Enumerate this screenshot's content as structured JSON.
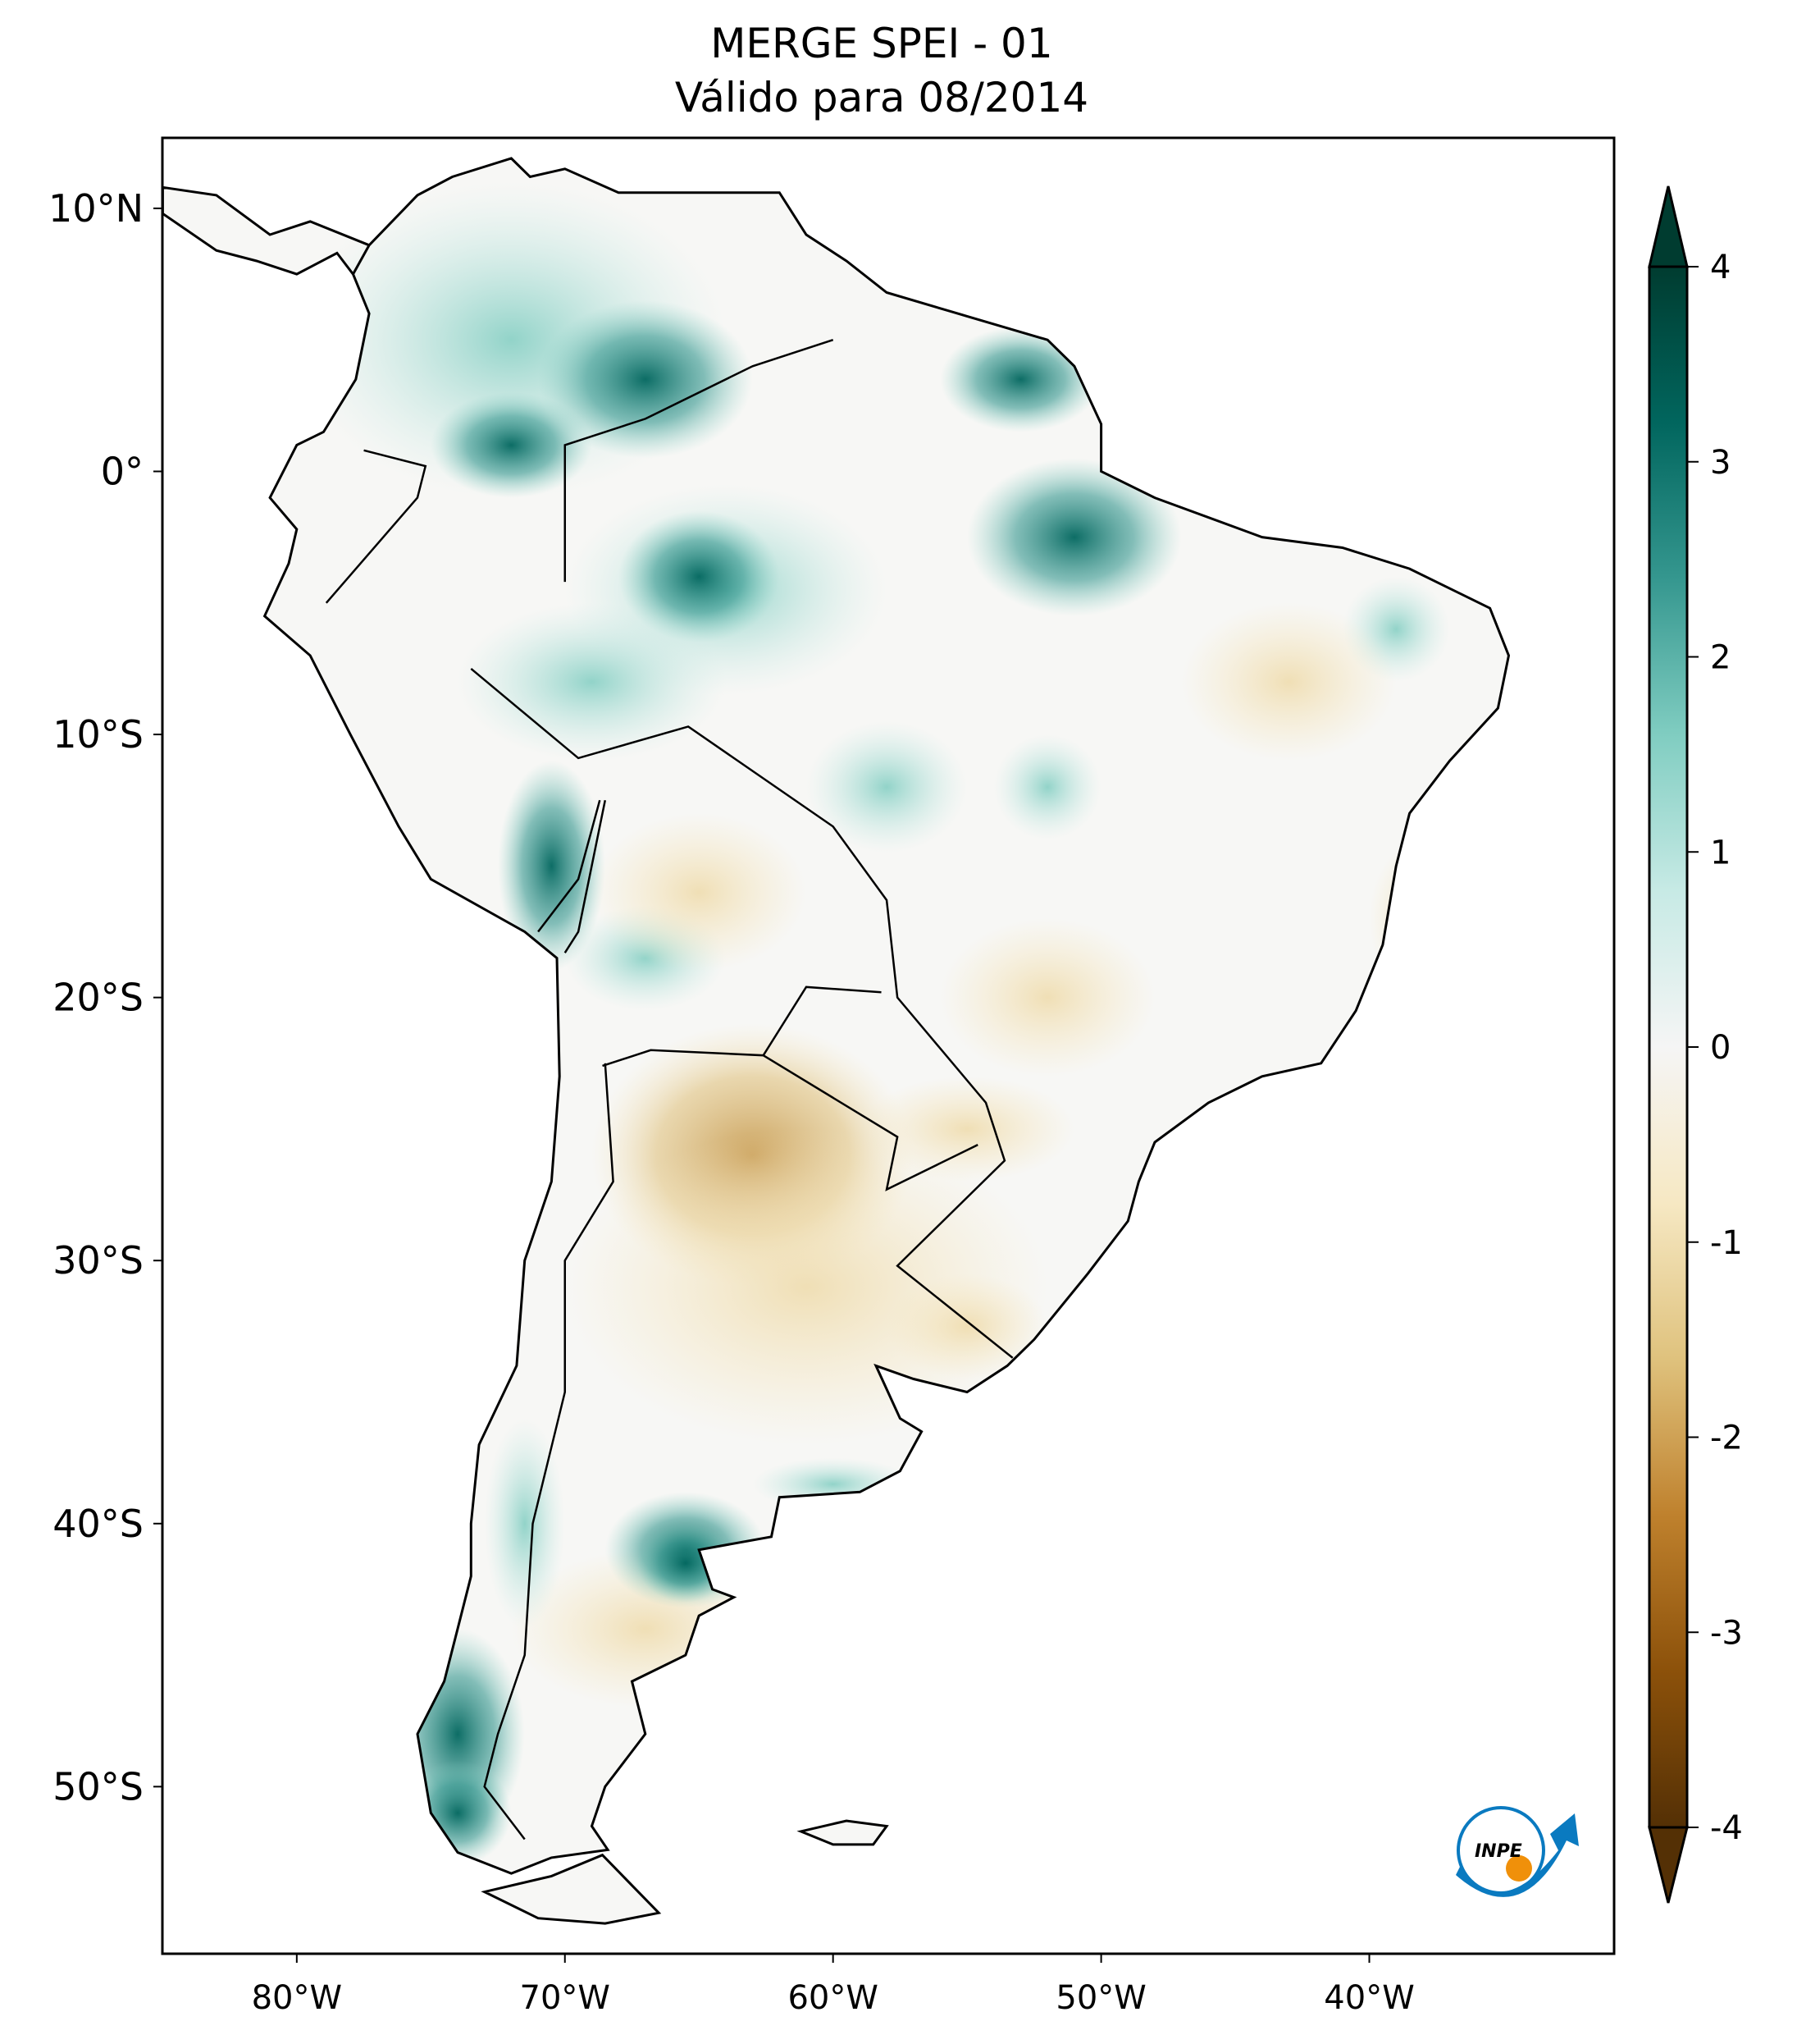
{
  "title": {
    "line1": "MERGE   SPEI - 01",
    "line2": "Válido para 08/2014"
  },
  "chart_data": {
    "type": "heatmap",
    "variable": "SPEI - 01",
    "source": "MERGE",
    "period": "08/2014",
    "xlim": [
      -85,
      -31
    ],
    "ylim": [
      -56.3,
      12.6
    ],
    "x_ticks": [
      {
        "value": -80,
        "label": "80°W"
      },
      {
        "value": -70,
        "label": "70°W"
      },
      {
        "value": -60,
        "label": "60°W"
      },
      {
        "value": -50,
        "label": "50°W"
      },
      {
        "value": -40,
        "label": "40°W"
      }
    ],
    "y_ticks": [
      {
        "value": 10,
        "label": "10°N"
      },
      {
        "value": 0,
        "label": "0°"
      },
      {
        "value": -10,
        "label": "10°S"
      },
      {
        "value": -20,
        "label": "20°S"
      },
      {
        "value": -30,
        "label": "30°S"
      },
      {
        "value": -40,
        "label": "40°S"
      },
      {
        "value": -50,
        "label": "50°S"
      }
    ],
    "colorbar": {
      "range": [
        -4,
        4
      ],
      "extend": "both",
      "colormap": "BrBG",
      "ticks": [
        {
          "value": 4,
          "label": "4"
        },
        {
          "value": 3,
          "label": "3"
        },
        {
          "value": 2,
          "label": "2"
        },
        {
          "value": 1,
          "label": "1"
        },
        {
          "value": 0,
          "label": "0"
        },
        {
          "value": -1,
          "label": "-1"
        },
        {
          "value": -2,
          "label": "-2"
        },
        {
          "value": -3,
          "label": "-3"
        },
        {
          "value": -4,
          "label": "-4"
        }
      ],
      "colors": [
        "#543005",
        "#8c510a",
        "#bf812d",
        "#dfc27d",
        "#f6e8c3",
        "#f5f5f5",
        "#c7eae5",
        "#80cdc1",
        "#35978f",
        "#01665e",
        "#003c30"
      ]
    }
  },
  "logo": {
    "text": "INPE"
  }
}
